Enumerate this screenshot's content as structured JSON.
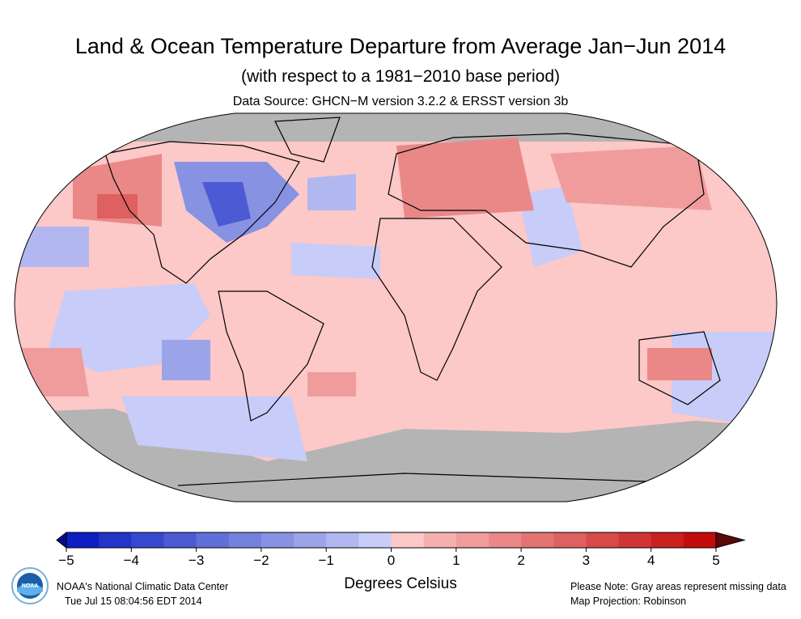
{
  "title": "Land & Ocean Temperature Departure from Average Jan−Jun 2014",
  "subtitle": "(with respect to a 1981−2010 base period)",
  "source": "Data Source: GHCN−M version 3.2.2 & ERSST version 3b",
  "map": {
    "projection": "Robinson",
    "missing_color": "#b4b4b4",
    "outline_color": "#000000"
  },
  "colorbar": {
    "unit_label": "Degrees Celsius",
    "range": [
      -5,
      5
    ],
    "bin_width": 0.5,
    "ticks": [
      "−5",
      "−4",
      "−3",
      "−2",
      "−1",
      "0",
      "1",
      "2",
      "3",
      "4",
      "5"
    ],
    "below_color": "#0a0a8c",
    "above_color": "#5a0a0a",
    "colors": [
      "#0c1ec4",
      "#2434c8",
      "#3848ce",
      "#4c5ad4",
      "#6070d9",
      "#7482de",
      "#8892e3",
      "#9ca4e9",
      "#b2b8ef",
      "#c8ccf8",
      "#fcc8c8",
      "#f5b0b0",
      "#f09c9c",
      "#ea8888",
      "#e47474",
      "#de6060",
      "#d84a4a",
      "#d13434",
      "#ca2020",
      "#c30c0c"
    ]
  },
  "footer": {
    "org": "NOAA's National Climatic Data Center",
    "timestamp": "Tue Jul 15 08:04:56 EDT 2014",
    "note": "Please Note: Gray areas represent missing data",
    "projection_label": "Map Projection: Robinson",
    "logo_text": "NOAA"
  }
}
